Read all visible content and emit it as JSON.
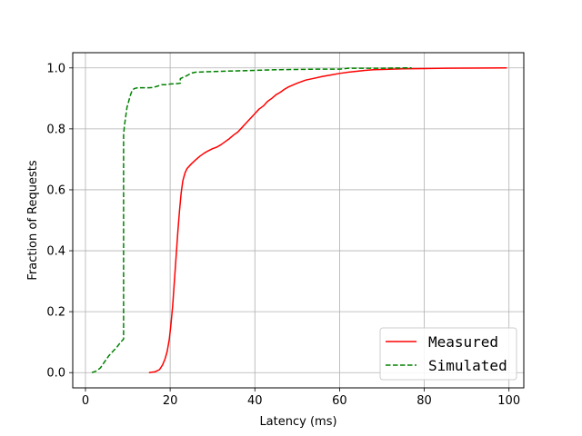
{
  "chart_data": {
    "type": "line",
    "title": "",
    "xlabel": "Latency (ms)",
    "ylabel": "Fraction of Requests",
    "xlim": [
      -3,
      103.5
    ],
    "ylim": [
      -0.05,
      1.05
    ],
    "xticks": [
      0,
      20,
      40,
      60,
      80,
      100
    ],
    "yticks": [
      0.0,
      0.2,
      0.4,
      0.6,
      0.8,
      1.0
    ],
    "xtick_labels": [
      "0",
      "20",
      "40",
      "60",
      "80",
      "100"
    ],
    "ytick_labels": [
      "0.0",
      "0.2",
      "0.4",
      "0.6",
      "0.8",
      "1.0"
    ],
    "grid": true,
    "legend_position": "lower-right",
    "series": [
      {
        "name": "Measured",
        "color": "#ff0000",
        "style": "solid",
        "x": [
          15,
          16.5,
          17.5,
          18.2,
          18.8,
          19.3,
          19.8,
          20.2,
          20.6,
          21.0,
          21.4,
          21.8,
          22.2,
          22.6,
          23.0,
          23.5,
          24.0,
          25.0,
          26.0,
          27.0,
          28.0,
          29.0,
          30.0,
          31.0,
          32.0,
          33.0,
          34.0,
          35.0,
          36.0,
          37.0,
          38.0,
          39.0,
          40.0,
          41.0,
          42.0,
          43.0,
          44.0,
          45.0,
          46.0,
          47.0,
          48.0,
          50.0,
          52.0,
          54.0,
          56.0,
          58.0,
          60.0,
          62.0,
          64.0,
          66.0,
          68.0,
          70.0,
          75.0,
          80.0,
          85.0,
          90.0,
          95.0,
          99.5
        ],
        "y": [
          0.0,
          0.003,
          0.01,
          0.025,
          0.045,
          0.07,
          0.11,
          0.16,
          0.22,
          0.3,
          0.38,
          0.46,
          0.53,
          0.59,
          0.63,
          0.655,
          0.67,
          0.685,
          0.698,
          0.71,
          0.72,
          0.728,
          0.735,
          0.74,
          0.748,
          0.758,
          0.768,
          0.78,
          0.79,
          0.805,
          0.82,
          0.835,
          0.85,
          0.865,
          0.875,
          0.89,
          0.9,
          0.912,
          0.92,
          0.93,
          0.938,
          0.95,
          0.96,
          0.966,
          0.972,
          0.977,
          0.982,
          0.986,
          0.989,
          0.992,
          0.994,
          0.995,
          0.997,
          0.998,
          0.999,
          0.9995,
          0.9998,
          1.0
        ]
      },
      {
        "name": "Simulated",
        "color": "#008000",
        "style": "dashed",
        "x": [
          1.5,
          2.5,
          3.5,
          4.5,
          5.5,
          6.5,
          7.5,
          8.3,
          9.0,
          9.0,
          9.2,
          9.5,
          9.8,
          10.2,
          10.6,
          11.0,
          11.5,
          12.0,
          13.0,
          14.0,
          15.0,
          16.0,
          17.0,
          18.0,
          19.0,
          20.0,
          21.0,
          22.0,
          22.4,
          22.4,
          23.5,
          24.0,
          25.0,
          26.0,
          30.0,
          35.0,
          40.0,
          45.0,
          50.0,
          55.0,
          60.0,
          61.0,
          62.0,
          65.0,
          70.0,
          75.0,
          77.0
        ],
        "y": [
          0.0,
          0.005,
          0.015,
          0.035,
          0.055,
          0.07,
          0.085,
          0.1,
          0.11,
          0.78,
          0.81,
          0.84,
          0.87,
          0.89,
          0.91,
          0.925,
          0.932,
          0.934,
          0.935,
          0.935,
          0.935,
          0.936,
          0.94,
          0.945,
          0.945,
          0.947,
          0.948,
          0.949,
          0.95,
          0.965,
          0.972,
          0.975,
          0.983,
          0.986,
          0.988,
          0.99,
          0.992,
          0.994,
          0.995,
          0.996,
          0.996,
          0.997,
          0.999,
          0.999,
          0.999,
          1.0,
          1.0
        ]
      }
    ]
  }
}
